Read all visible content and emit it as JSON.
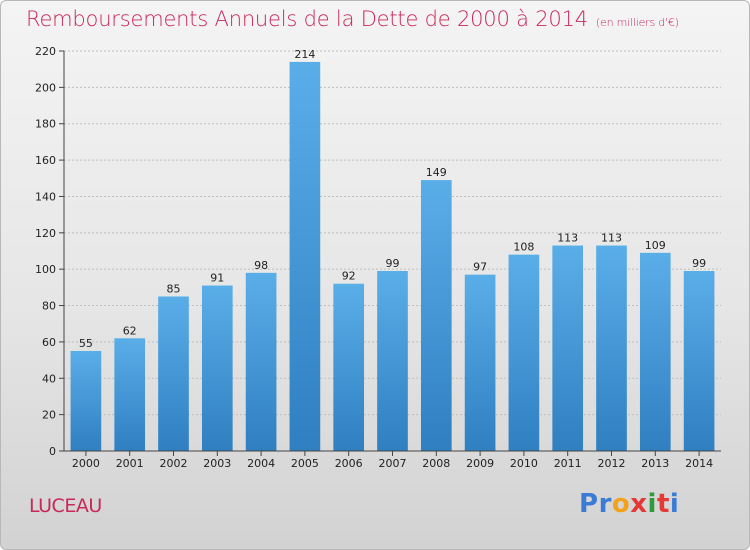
{
  "header": {
    "title": "Remboursements Annuels de la Dette de 2000 à 2014",
    "unit": "(en milliers d'€)"
  },
  "footer": {
    "town": "LUCEAU",
    "logo": [
      "P",
      "r",
      "o",
      "x",
      "i",
      "t",
      "i"
    ]
  },
  "colors": {
    "title": "#c8285a",
    "bar_top": "#5aaee8",
    "bar_bottom": "#2f7fc1",
    "logo": [
      "#3a7bd5",
      "#3a7bd5",
      "#f2a31b",
      "#e53935",
      "#2e9b3a",
      "#e53935",
      "#3a7bd5"
    ]
  },
  "chart_data": {
    "type": "bar",
    "title": "Remboursements Annuels de la Dette de 2000 à 2014",
    "unit": "(en milliers d'€)",
    "categories": [
      "2000",
      "2001",
      "2002",
      "2003",
      "2004",
      "2005",
      "2006",
      "2007",
      "2008",
      "2009",
      "2010",
      "2011",
      "2012",
      "2013",
      "2014"
    ],
    "values": [
      55,
      62,
      85,
      91,
      98,
      214,
      92,
      99,
      149,
      97,
      108,
      113,
      113,
      109,
      99
    ],
    "ylim": [
      0,
      220
    ],
    "yticks": [
      0,
      20,
      40,
      60,
      80,
      100,
      120,
      140,
      160,
      180,
      200,
      220
    ],
    "grid": true
  }
}
